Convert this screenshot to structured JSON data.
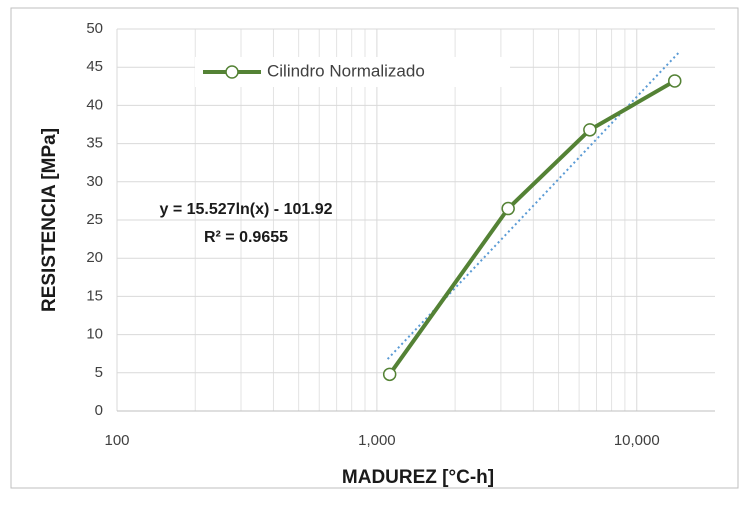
{
  "chart_data": {
    "type": "line",
    "x_label": "MADUREZ [°C-h]",
    "y_label": "RESISTENCIA [MPa]",
    "x": [
      1120,
      3200,
      6600,
      14000
    ],
    "series": [
      {
        "name": "Cilindro Normalizado",
        "color": "#548235",
        "values": [
          4.8,
          26.5,
          36.8,
          43.2
        ]
      }
    ],
    "trendline": {
      "color": "#5b9bd5",
      "x": [
        1100,
        14500
      ],
      "values": [
        6.8,
        46.9
      ],
      "equation": "y = 15.527ln(x) - 101.92",
      "r_squared": "R² = 0.9655"
    },
    "x_log": true,
    "xlim": [
      100,
      20000
    ],
    "ylim": [
      0,
      50
    ],
    "xticks": [
      100,
      {
        "value": 1000,
        "label": "1,000"
      },
      {
        "value": 10000,
        "label": "10,000"
      }
    ],
    "yticks": [
      0,
      5,
      10,
      15,
      20,
      25,
      30,
      35,
      40,
      45,
      50
    ],
    "grid": true,
    "legend": "upper-left"
  }
}
